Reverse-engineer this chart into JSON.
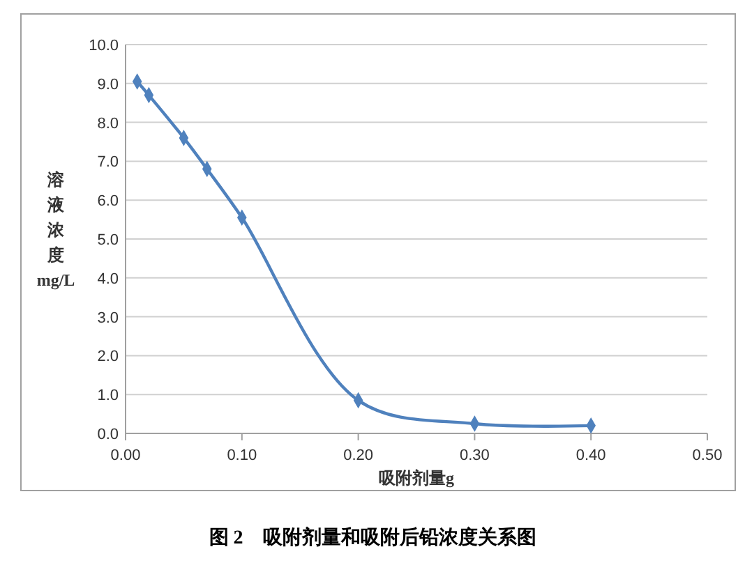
{
  "chart_data": {
    "type": "line",
    "title": "图 2　吸附剂量和吸附后铅浓度关系图",
    "xlabel": "吸附剂量g",
    "ylabel": "溶液浓度mg/L",
    "x": [
      0.01,
      0.02,
      0.05,
      0.07,
      0.1,
      0.2,
      0.3,
      0.4
    ],
    "series": [
      {
        "color": "#4f81bd",
        "values": [
          9.05,
          8.7,
          7.6,
          6.8,
          5.55,
          0.85,
          0.25,
          0.2
        ]
      }
    ],
    "xlim": [
      0,
      0.5
    ],
    "xticks": [
      {
        "value": 0,
        "label": "0.00"
      },
      {
        "value": 0.1,
        "label": "0.10"
      },
      {
        "value": 0.2,
        "label": "0.20"
      },
      {
        "value": 0.3,
        "label": "0.30"
      },
      {
        "value": 0.4,
        "label": "0.40"
      },
      {
        "value": 0.5,
        "label": "0.50"
      }
    ],
    "ylim": [
      0,
      10
    ],
    "yticks": [
      {
        "value": 0,
        "label": "0.0"
      },
      {
        "value": 1,
        "label": "1.0"
      },
      {
        "value": 2,
        "label": "2.0"
      },
      {
        "value": 3,
        "label": "3.0"
      },
      {
        "value": 4,
        "label": "4.0"
      },
      {
        "value": 5,
        "label": "5.0"
      },
      {
        "value": 6,
        "label": "6.0"
      },
      {
        "value": 7,
        "label": "7.0"
      },
      {
        "value": 8,
        "label": "8.0"
      },
      {
        "value": 9,
        "label": "9.0"
      },
      {
        "value": 10,
        "label": "10.0"
      }
    ],
    "grid": "y",
    "marker": "diamond",
    "line_style": "solid"
  }
}
